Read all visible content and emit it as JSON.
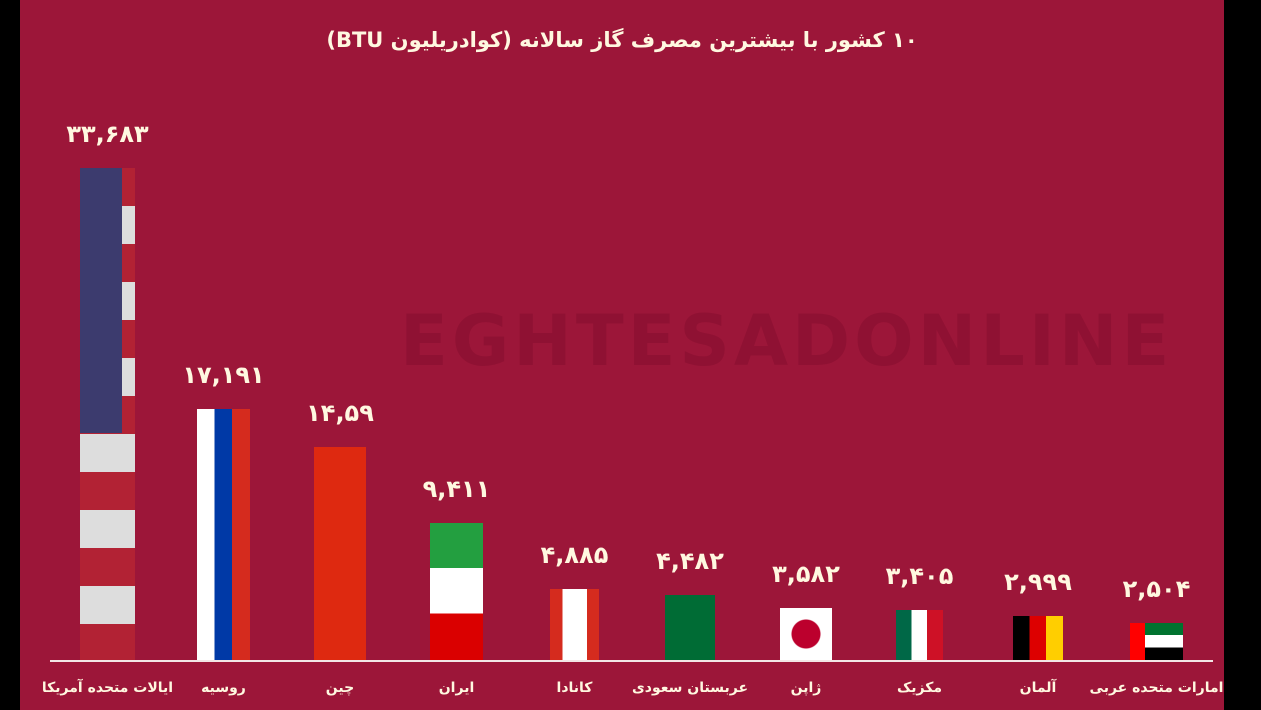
{
  "chart_data": {
    "type": "bar",
    "title": "۱۰ کشور با بیشترین مصرف گاز سالانه (کوادریلیون BTU)",
    "categories": [
      "ایالات متحده آمریکا",
      "روسیه",
      "چین",
      "ایران",
      "کانادا",
      "عربستان سعودی",
      "ژاپن",
      "مکزیک",
      "آلمان",
      "امارات متحده عربی"
    ],
    "flags": [
      "usa",
      "russia",
      "china",
      "iran",
      "canada",
      "saudi",
      "japan",
      "mexico",
      "germany",
      "uae"
    ],
    "values": [
      33.683,
      17.191,
      14.59,
      9.411,
      4.885,
      4.482,
      3.582,
      3.405,
      2.999,
      2.504
    ],
    "data_labels": [
      "۳۳,۶۸۳",
      "۱۷,۱۹۱",
      "۱۴,۵۹",
      "۹,۴۱۱",
      "۴,۸۸۵",
      "۴,۴۸۲",
      "۳,۵۸۲",
      "۳,۴۰۵",
      "۲,۹۹۹",
      "۲,۵۰۴"
    ],
    "ylim": [
      0,
      33.683
    ],
    "grid": false,
    "background_color": "#9c1639"
  },
  "watermark": "EGHTESADONLINE"
}
